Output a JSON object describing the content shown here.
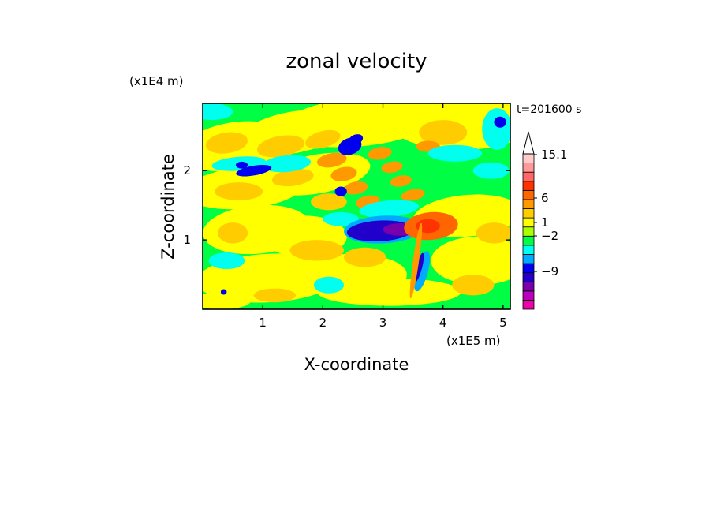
{
  "chart_data": {
    "type": "heatmap",
    "title": "zonal velocity",
    "xlabel": "X-coordinate",
    "ylabel": "Z-coordinate",
    "x_unit": "(x1E5 m)",
    "y_unit": "(x1E4 m)",
    "time_label": "t=201600 s",
    "xlim": [
      0,
      5.12
    ],
    "ylim": [
      0,
      2.97
    ],
    "x_ticks": [
      1,
      2,
      3,
      4,
      5
    ],
    "y_ticks": [
      1,
      2
    ],
    "x_tick_labels": [
      "1",
      "2",
      "3",
      "4",
      "5"
    ],
    "y_tick_labels": [
      "1",
      "2"
    ],
    "colorbar": {
      "colors": [
        "#ee00aa",
        "#bb00bb",
        "#7700aa",
        "#2200cc",
        "#0000ee",
        "#00aaff",
        "#00ffee",
        "#00ff44",
        "#aaff00",
        "#ffff00",
        "#ffcc00",
        "#ff9900",
        "#ff6600",
        "#ff3300",
        "#ff6666",
        "#ff9999",
        "#ffcccc"
      ],
      "tick_labels": [
        "15.1",
        "6",
        "1",
        "−2",
        "−9"
      ],
      "tick_values": [
        15.1,
        6,
        1,
        -2,
        -9
      ],
      "extend": "max"
    },
    "features": [
      {
        "x": 3.0,
        "z": 1.15,
        "value": -7,
        "note": "strong negative (blue) zone"
      },
      {
        "x": 3.55,
        "z": 1.15,
        "value": -9,
        "note": "purple core"
      },
      {
        "x": 3.75,
        "z": 1.2,
        "value": 5,
        "note": "red/orange positive zone"
      },
      {
        "x": 3.6,
        "z": 0.5,
        "value": -5,
        "note": "narrow tilted wave band"
      }
    ]
  }
}
